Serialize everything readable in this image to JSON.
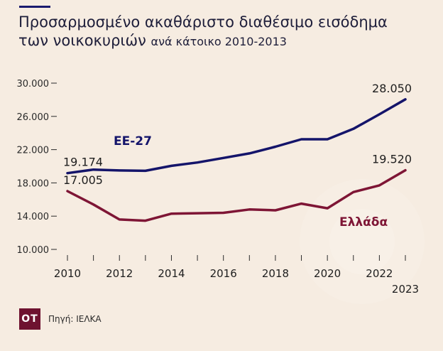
{
  "header": {
    "title_line1": "Προσαρμοσμένο ακαθάριστο διαθέσιμο εισόδημα",
    "title_line2": "των νοικοκυριών",
    "title_line2_suffix": "ανά κάτοικο 2010-2013"
  },
  "footer": {
    "logo": "ΟΤ",
    "source": "Πηγή: ΙΕΛΚΑ"
  },
  "chart_data": {
    "type": "line",
    "title": "Προσαρμοσμένο ακαθάριστο διαθέσιμο εισόδημα των νοικοκυριών ανά κάτοικο 2010-2013",
    "x": [
      2010,
      2011,
      2012,
      2013,
      2014,
      2015,
      2016,
      2017,
      2018,
      2019,
      2020,
      2021,
      2022,
      2023
    ],
    "x_tick_labels": [
      "2010",
      "2012",
      "2014",
      "2016",
      "2018",
      "2020",
      "2022",
      "2023"
    ],
    "y_tick_labels": [
      "10.000",
      "14.000",
      "18.000",
      "22.000",
      "26.000",
      "30.000"
    ],
    "y_ticks": [
      10000,
      14000,
      18000,
      22000,
      26000,
      30000
    ],
    "ylim": [
      10000,
      30000
    ],
    "xlim": [
      2010,
      2023
    ],
    "series": [
      {
        "name": "ΕΕ-27",
        "color": "#14146a",
        "values": [
          19174,
          19600,
          19500,
          19450,
          20050,
          20450,
          21000,
          21550,
          22350,
          23250,
          23250,
          24500,
          26250,
          28050
        ],
        "start_label": "19.174",
        "end_label": "28.050"
      },
      {
        "name": "Ελλάδα",
        "color": "#7e1535",
        "values": [
          17005,
          15400,
          13600,
          13450,
          14300,
          14350,
          14400,
          14800,
          14700,
          15500,
          14950,
          16900,
          17700,
          19520
        ],
        "start_label": "17.005",
        "end_label": "19.520"
      }
    ],
    "grid": false
  }
}
